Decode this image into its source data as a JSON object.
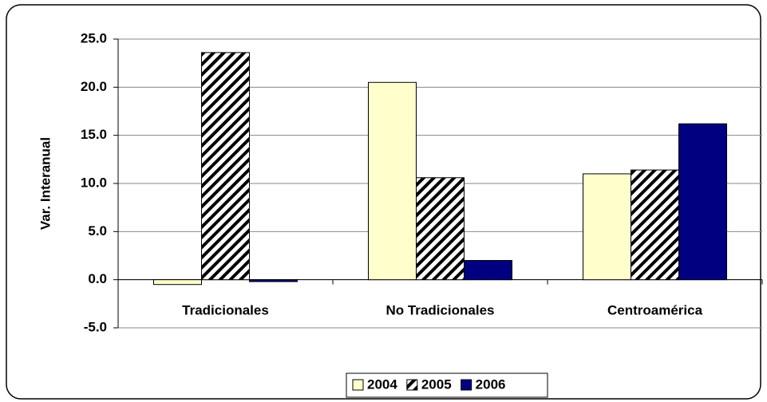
{
  "chart_data": {
    "type": "bar",
    "y_label": "Var. Interanual",
    "categories": [
      "Tradicionales",
      "No Tradicionales",
      "Centroamérica"
    ],
    "series": [
      {
        "name": "2004",
        "color": "#ffffcc",
        "hatch": false,
        "values": [
          -0.5,
          20.5,
          11.0
        ]
      },
      {
        "name": "2005",
        "color": "#ffffff",
        "hatch": true,
        "values": [
          23.6,
          10.6,
          11.4
        ]
      },
      {
        "name": "2006",
        "color": "#000080",
        "hatch": false,
        "values": [
          -0.2,
          2.0,
          16.2
        ]
      }
    ],
    "ylim": [
      -5,
      25
    ],
    "yticks": [
      {
        "value": -5,
        "label": "-5.0"
      },
      {
        "value": 0,
        "label": "0.0"
      },
      {
        "value": 5,
        "label": "5.0"
      },
      {
        "value": 10,
        "label": "10.0"
      },
      {
        "value": 15,
        "label": "15.0"
      },
      {
        "value": 20,
        "label": "20.0"
      },
      {
        "value": 25,
        "label": "25.0"
      }
    ],
    "grid": true,
    "legend": "bottom"
  }
}
